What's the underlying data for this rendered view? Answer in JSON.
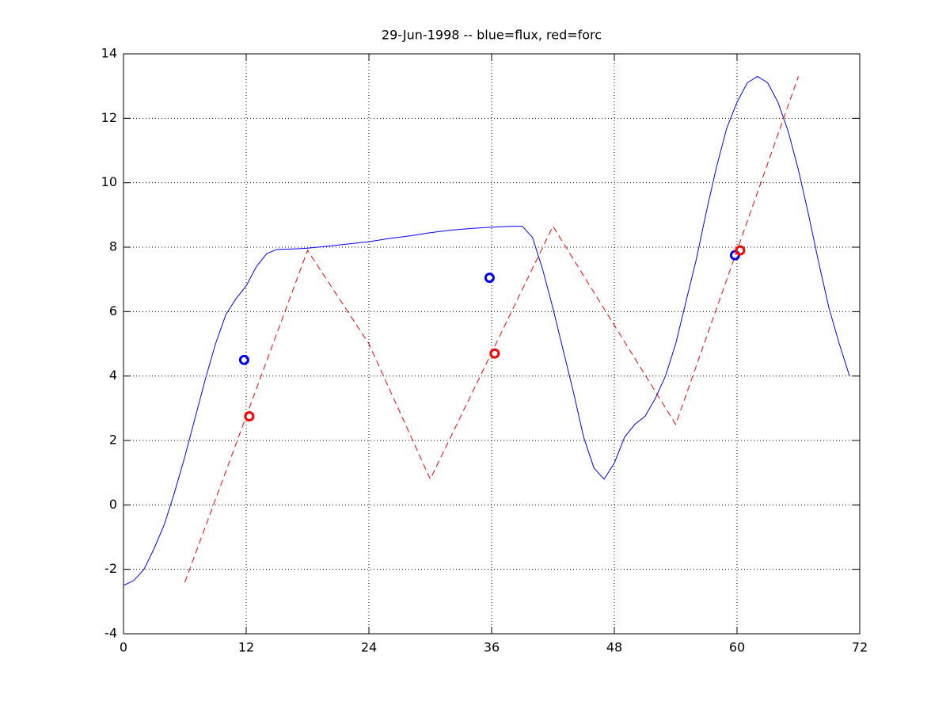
{
  "chart_data": {
    "type": "line",
    "title": "29-Jun-1998 -- blue=flux, red=forc",
    "xlim": [
      0,
      72
    ],
    "xticks": [
      0,
      12,
      24,
      36,
      48,
      60,
      72
    ],
    "ylim": [
      -4,
      14
    ],
    "yticks": [
      -4,
      -2,
      0,
      2,
      4,
      6,
      8,
      10,
      12,
      14
    ],
    "grid": true,
    "series": [
      {
        "color": "#0000ff",
        "style": "solid",
        "x": [
          0,
          1,
          2,
          3,
          4,
          5,
          6,
          7,
          8,
          9,
          10,
          11,
          12,
          13,
          14,
          15,
          16,
          17,
          18,
          20,
          22,
          24,
          26,
          28,
          30,
          32,
          34,
          36,
          38,
          39,
          40,
          41,
          42,
          43,
          44,
          45,
          46,
          47,
          48,
          49,
          50,
          51,
          52,
          53,
          54,
          55,
          56,
          57,
          58,
          59,
          60,
          61,
          62,
          63,
          64,
          65,
          66,
          67,
          68,
          69,
          70,
          71
        ],
        "values": [
          -2.5,
          -2.35,
          -2.0,
          -1.35,
          -0.6,
          0.4,
          1.5,
          2.7,
          3.9,
          5.0,
          5.9,
          6.4,
          6.8,
          7.4,
          7.8,
          7.93,
          7.94,
          7.95,
          7.97,
          8.03,
          8.1,
          8.17,
          8.27,
          8.35,
          8.45,
          8.53,
          8.58,
          8.62,
          8.65,
          8.65,
          8.3,
          7.3,
          6.1,
          4.8,
          3.5,
          2.1,
          1.15,
          0.8,
          1.3,
          2.1,
          2.5,
          2.75,
          3.3,
          4.0,
          5.0,
          6.3,
          7.6,
          9.1,
          10.5,
          11.7,
          12.5,
          13.1,
          13.3,
          13.1,
          12.5,
          11.6,
          10.4,
          9.0,
          7.5,
          6.1,
          5.0,
          4.0
        ]
      },
      {
        "color": "#ff0000",
        "style": "dashed",
        "x": [
          6,
          18,
          24,
          30,
          42,
          54,
          66
        ],
        "values": [
          -2.4,
          7.9,
          5.0,
          0.8,
          8.65,
          2.5,
          13.3
        ]
      },
      {
        "color": "#0000ff",
        "style": "markers",
        "x": [
          11.8,
          35.8,
          59.8
        ],
        "values": [
          4.5,
          7.05,
          7.75
        ]
      },
      {
        "color": "#ff0000",
        "style": "markers",
        "x": [
          12.3,
          36.3,
          60.3
        ],
        "values": [
          2.75,
          4.7,
          7.9
        ]
      }
    ]
  }
}
